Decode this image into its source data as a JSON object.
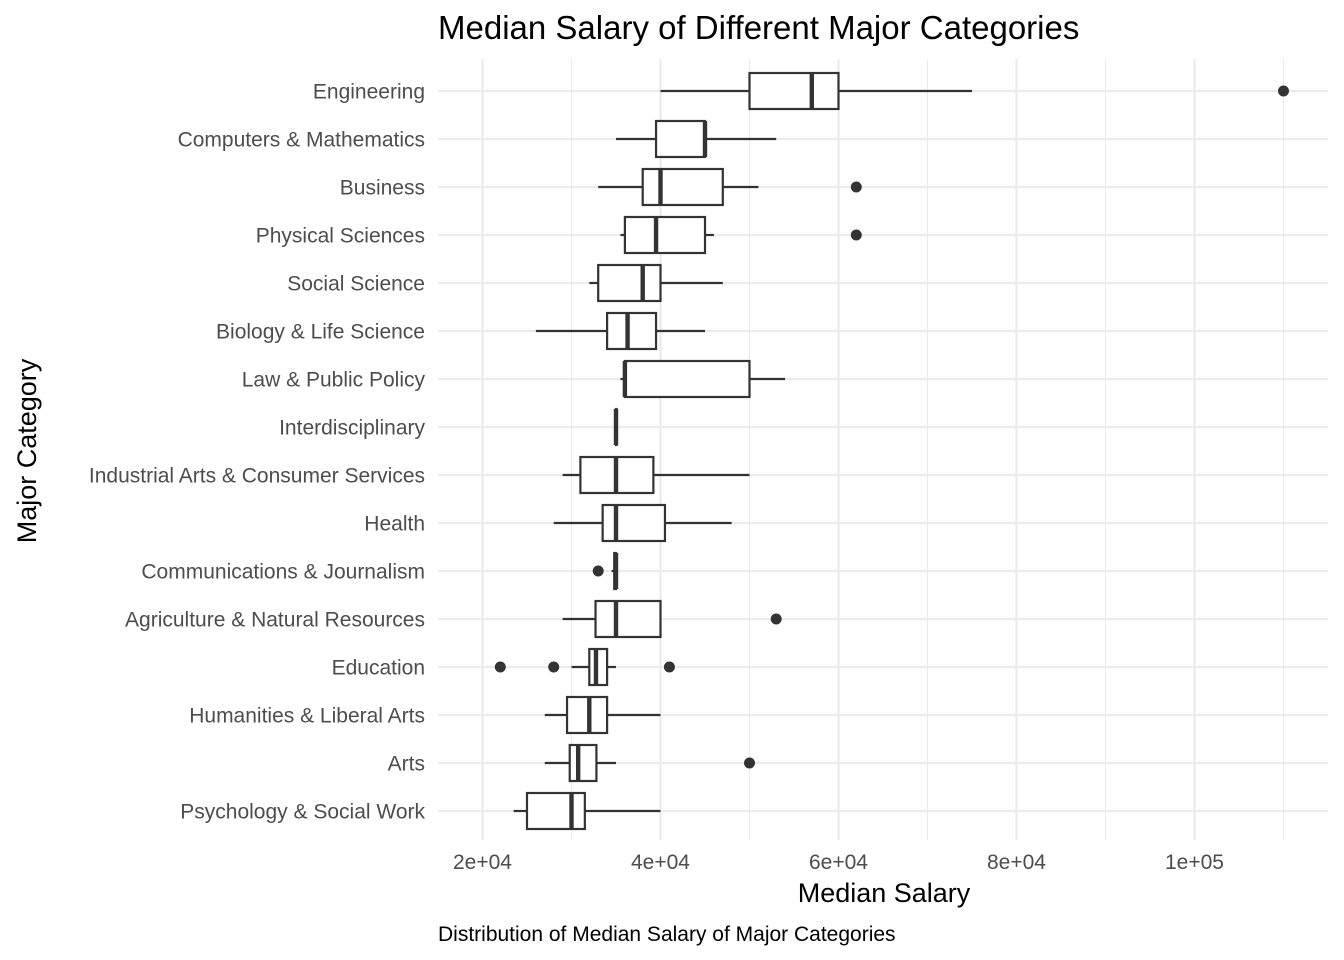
{
  "chart_data": {
    "type": "boxplot",
    "title": "Median Salary of Different Major Categories",
    "xlabel": "Median Salary",
    "ylabel": "Major Category",
    "caption": "Distribution of Median Salary of Major Categories",
    "xlim": [
      15000,
      115000
    ],
    "x_ticks": [
      {
        "value": 20000,
        "label": "2e+04"
      },
      {
        "value": 40000,
        "label": "4e+04"
      },
      {
        "value": 60000,
        "label": "6e+04"
      },
      {
        "value": 80000,
        "label": "8e+04"
      },
      {
        "value": 100000,
        "label": "1e+05"
      }
    ],
    "x_minor_ticks": [
      30000,
      50000,
      70000,
      90000,
      110000
    ],
    "grid": true,
    "colors": {
      "box_outline": "#333333",
      "box_fill": "#ffffff",
      "grid": "#ebebeb",
      "tick_text": "#4d4d4d"
    },
    "categories": [
      {
        "name": "Engineering",
        "min": 40000,
        "q1": 50000,
        "median": 57000,
        "q3": 60000,
        "max": 75000,
        "outliers": [
          110000
        ]
      },
      {
        "name": "Computers & Mathematics",
        "min": 35000,
        "q1": 39500,
        "median": 45000,
        "q3": 45000,
        "max": 53000,
        "outliers": []
      },
      {
        "name": "Business",
        "min": 33000,
        "q1": 38000,
        "median": 40000,
        "q3": 47000,
        "max": 51000,
        "outliers": [
          62000
        ]
      },
      {
        "name": "Physical Sciences",
        "min": 35500,
        "q1": 36000,
        "median": 39500,
        "q3": 45000,
        "max": 46000,
        "outliers": [
          62000
        ]
      },
      {
        "name": "Social Science",
        "min": 32000,
        "q1": 33000,
        "median": 38000,
        "q3": 40000,
        "max": 47000,
        "outliers": []
      },
      {
        "name": "Biology & Life Science",
        "min": 26000,
        "q1": 34000,
        "median": 36300,
        "q3": 39500,
        "max": 45000,
        "outliers": []
      },
      {
        "name": "Law & Public Policy",
        "min": 35500,
        "q1": 36000,
        "median": 36000,
        "q3": 50000,
        "max": 54000,
        "outliers": []
      },
      {
        "name": "Interdisciplinary",
        "min": 35000,
        "q1": 35000,
        "median": 35000,
        "q3": 35000,
        "max": 35000,
        "outliers": []
      },
      {
        "name": "Industrial Arts & Consumer Services",
        "min": 29000,
        "q1": 31000,
        "median": 35000,
        "q3": 39200,
        "max": 50000,
        "outliers": []
      },
      {
        "name": "Health",
        "min": 28000,
        "q1": 33500,
        "median": 35000,
        "q3": 40500,
        "max": 48000,
        "outliers": []
      },
      {
        "name": "Communications & Journalism",
        "min": 34500,
        "q1": 34800,
        "median": 35000,
        "q3": 35000,
        "max": 35000,
        "outliers": [
          33000
        ]
      },
      {
        "name": "Agriculture & Natural Resources",
        "min": 29000,
        "q1": 32700,
        "median": 35000,
        "q3": 40000,
        "max": 40000,
        "outliers": [
          53000
        ]
      },
      {
        "name": "Education",
        "min": 30000,
        "q1": 32000,
        "median": 32750,
        "q3": 34000,
        "max": 35000,
        "outliers": [
          22000,
          28000,
          41000
        ]
      },
      {
        "name": "Humanities & Liberal Arts",
        "min": 27000,
        "q1": 29500,
        "median": 32000,
        "q3": 34000,
        "max": 40000,
        "outliers": []
      },
      {
        "name": "Arts",
        "min": 27000,
        "q1": 29800,
        "median": 30750,
        "q3": 32800,
        "max": 35000,
        "outliers": [
          50000
        ]
      },
      {
        "name": "Psychology & Social Work",
        "min": 23500,
        "q1": 25000,
        "median": 30000,
        "q3": 31500,
        "max": 40000,
        "outliers": []
      }
    ]
  }
}
